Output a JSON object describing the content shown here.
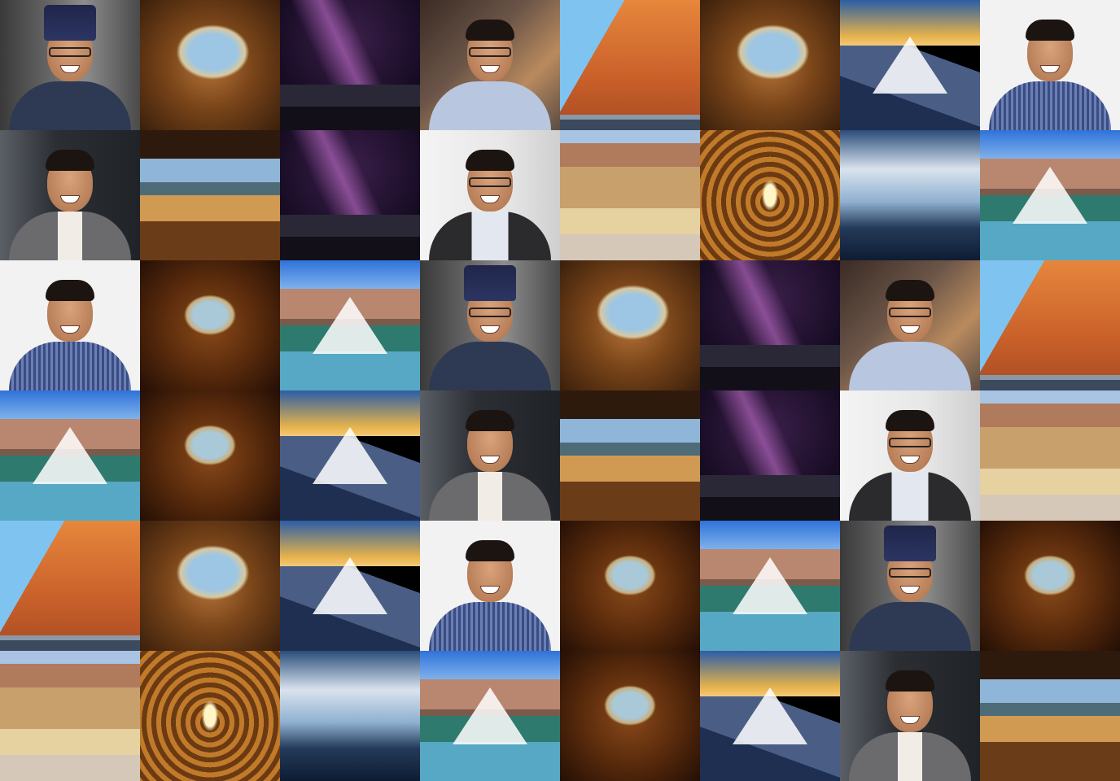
{
  "tiles": [
    [
      "portrait-topi",
      "cave",
      "milky",
      "portrait-cafe",
      "cliff",
      "cave",
      "peak",
      "portrait-white"
    ],
    [
      "portrait-suit",
      "cave-wide",
      "milky",
      "portrait-office",
      "desert",
      "tunnel",
      "clouds",
      "lake"
    ],
    [
      "portrait-white",
      "cave-dark",
      "lake",
      "portrait-topi",
      "cave",
      "milky",
      "portrait-cafe",
      "cliff"
    ],
    [
      "lake",
      "cave-dark",
      "peak-bw",
      "portrait-suit",
      "cave-wide",
      "milky",
      "portrait-office",
      "desert"
    ],
    [
      "cliff",
      "cave",
      "peak",
      "portrait-white",
      "cave-dark",
      "lake",
      "portrait-topi",
      "cave-dark"
    ],
    [
      "desert",
      "tunnel",
      "clouds",
      "lake",
      "cave-dark",
      "peak-bw",
      "portrait-suit",
      "cave-wide"
    ]
  ]
}
